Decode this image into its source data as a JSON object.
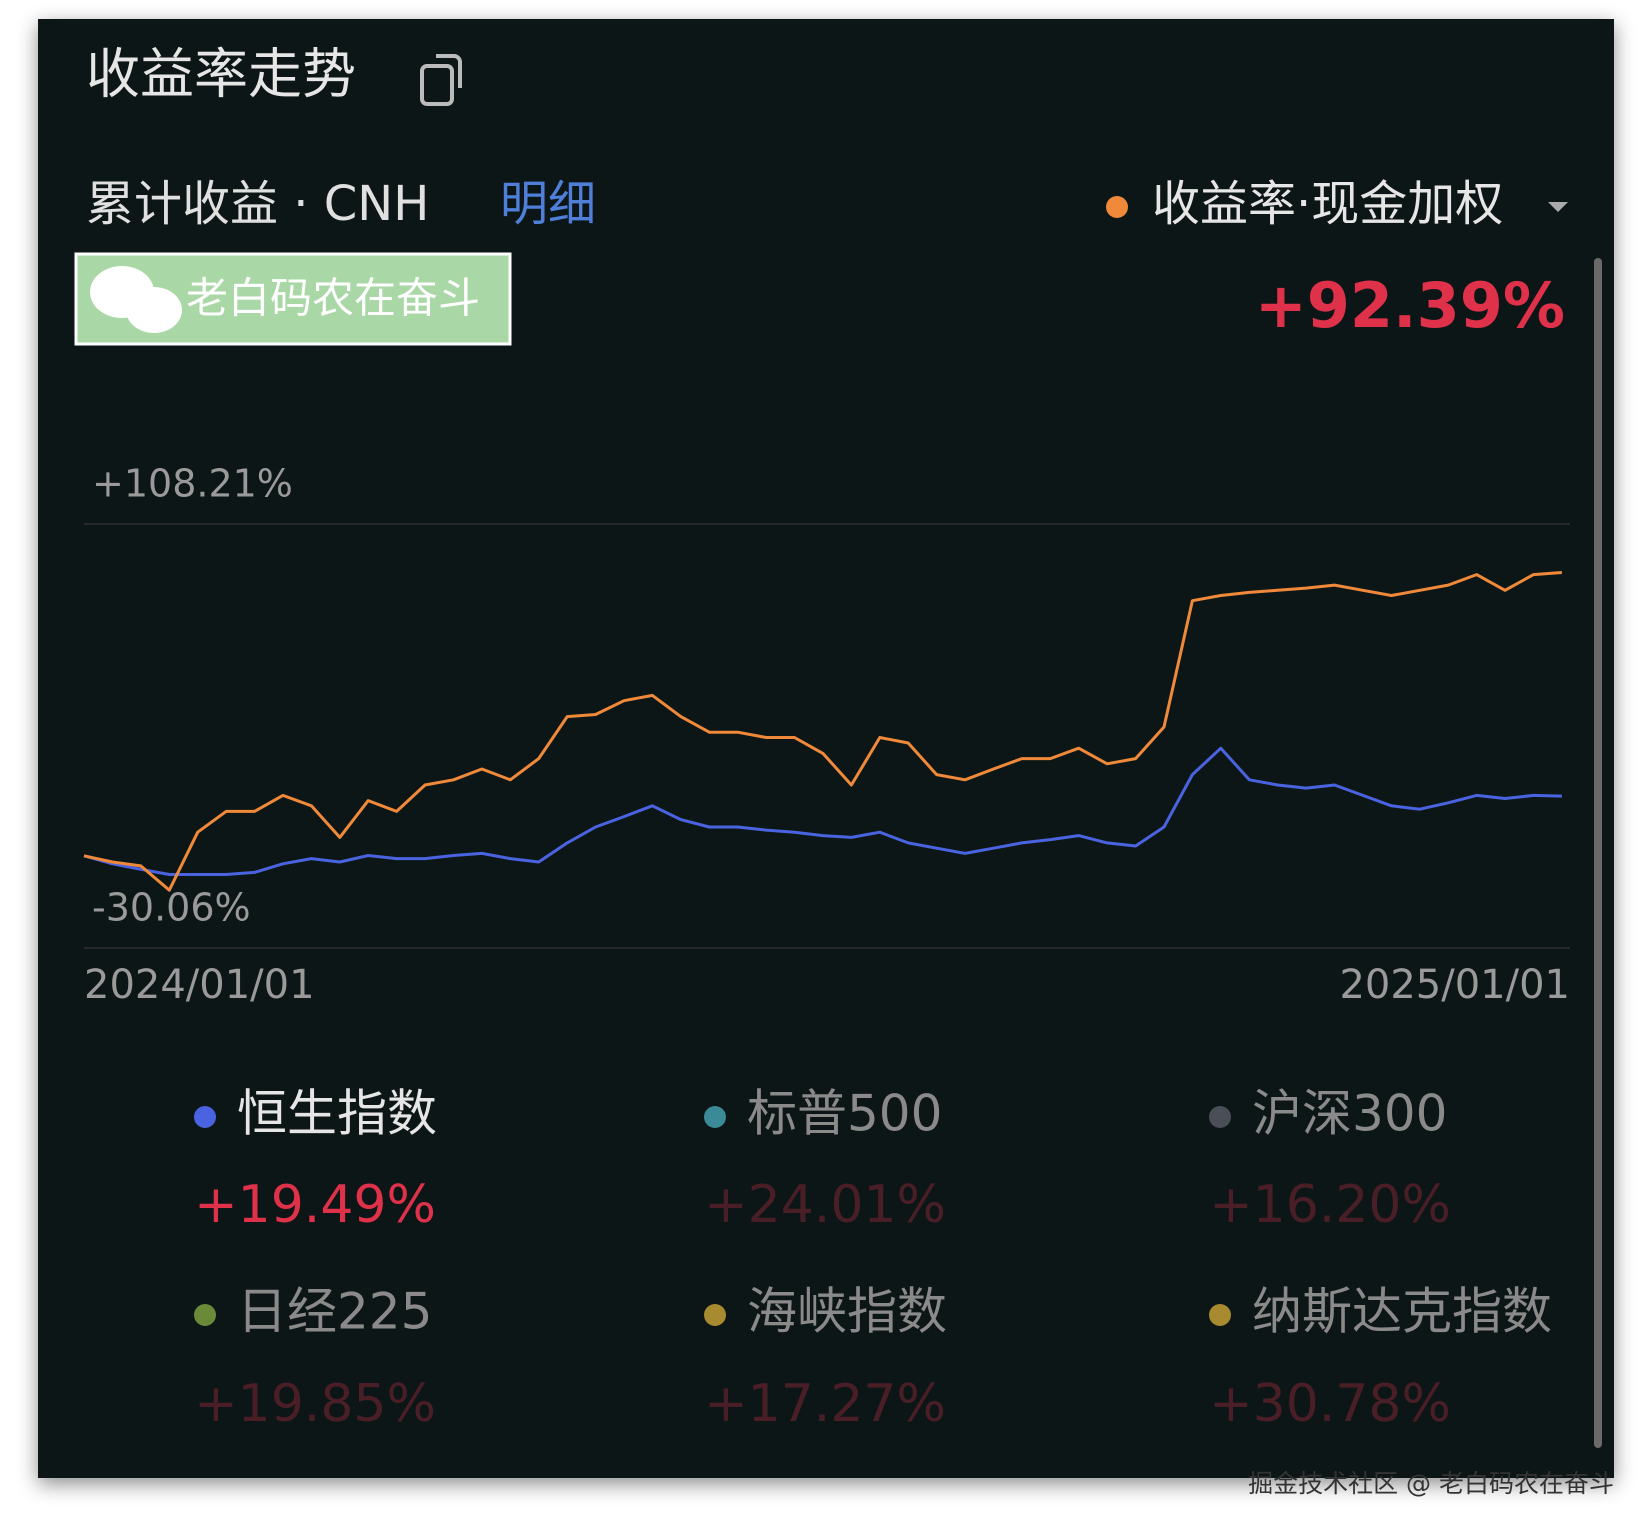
{
  "header": {
    "title": "收益率走势",
    "subtitle": "累计收益 · CNH",
    "detail_link": "明细",
    "badge": "老白码农在奋斗",
    "total_return": "+92.39%"
  },
  "chart_data": {
    "type": "line",
    "x": [
      "2024/01/01",
      "2024/01/08",
      "2024/01/15",
      "2024/01/22",
      "2024/01/29",
      "2024/02/05",
      "2024/02/12",
      "2024/02/19",
      "2024/02/26",
      "2024/03/04",
      "2024/03/11",
      "2024/03/18",
      "2024/03/25",
      "2024/04/01",
      "2024/04/08",
      "2024/04/15",
      "2024/04/22",
      "2024/04/29",
      "2024/05/06",
      "2024/05/13",
      "2024/05/20",
      "2024/05/27",
      "2024/06/03",
      "2024/06/10",
      "2024/06/17",
      "2024/06/24",
      "2024/07/01",
      "2024/07/08",
      "2024/07/15",
      "2024/07/22",
      "2024/07/29",
      "2024/08/05",
      "2024/08/12",
      "2024/08/19",
      "2024/08/26",
      "2024/09/02",
      "2024/09/09",
      "2024/09/16",
      "2024/09/23",
      "2024/09/30",
      "2024/10/07",
      "2024/10/14",
      "2024/10/21",
      "2024/10/28",
      "2024/11/04",
      "2024/11/11",
      "2024/11/18",
      "2024/11/25",
      "2024/12/02",
      "2024/12/09",
      "2024/12/16",
      "2024/12/23",
      "2024/12/30"
    ],
    "xlim": [
      "2024/01/01",
      "2025/01/01"
    ],
    "xticks": [
      "2024/01/01",
      "2025/01/01"
    ],
    "ylim": [
      -30.06,
      108.21
    ],
    "yticks": [
      {
        "value": 108.21,
        "label": "+108.21%"
      },
      {
        "value": -30.06,
        "label": "-30.06%"
      }
    ],
    "grid": true,
    "series": [
      {
        "name": "收益率·现金加权",
        "color": "#f08a3a",
        "values": [
          0,
          -2.0,
          -3.3,
          -11.2,
          7.7,
          14.5,
          14.5,
          19.7,
          16.3,
          6.0,
          18.0,
          14.5,
          23.1,
          24.8,
          28.3,
          24.8,
          31.7,
          45.4,
          46.1,
          50.6,
          52.3,
          45.4,
          40.3,
          40.3,
          38.6,
          38.6,
          33.4,
          23.1,
          38.6,
          36.8,
          26.5,
          24.8,
          28.3,
          31.7,
          31.7,
          35.1,
          30.0,
          31.7,
          42.0,
          83.2,
          84.9,
          85.9,
          86.6,
          87.3,
          88.3,
          86.6,
          84.9,
          86.6,
          88.3,
          91.7,
          86.6,
          91.7,
          92.39
        ]
      },
      {
        "name": "恒生指数",
        "color": "#4a63e0",
        "values": [
          0,
          -2.6,
          -4.4,
          -6.1,
          -6.1,
          -6.1,
          -5.4,
          -2.6,
          -0.9,
          -2.0,
          0.1,
          -0.9,
          -0.9,
          0.1,
          0.8,
          -0.9,
          -2.0,
          4.2,
          9.4,
          12.8,
          16.3,
          11.8,
          9.4,
          9.4,
          8.4,
          7.7,
          6.6,
          6.0,
          7.7,
          4.2,
          2.5,
          0.8,
          2.5,
          4.2,
          5.3,
          6.6,
          4.2,
          3.2,
          9.4,
          26.5,
          35.1,
          24.8,
          23.1,
          22.1,
          23.1,
          19.7,
          16.3,
          15.2,
          17.3,
          19.7,
          18.7,
          19.7,
          19.49
        ]
      }
    ]
  },
  "benchmarks": [
    {
      "name": "恒生指数",
      "value": "+19.49%",
      "dot": "#4a63e0",
      "active": true
    },
    {
      "name": "标普500",
      "value": "+24.01%",
      "dot": "#3a8a98",
      "active": false
    },
    {
      "name": "沪深300",
      "value": "+16.20%",
      "dot": "#4a4e57",
      "active": false
    },
    {
      "name": "日经225",
      "value": "+19.85%",
      "dot": "#6a8a3a",
      "active": false
    },
    {
      "name": "海峡指数",
      "value": "+17.27%",
      "dot": "#a88a30",
      "active": false
    },
    {
      "name": "纳斯达克指数",
      "value": "+30.78%",
      "dot": "#a88a30",
      "active": false
    }
  ],
  "watermark": "掘金技术社区 @ 老白码农在奋斗"
}
